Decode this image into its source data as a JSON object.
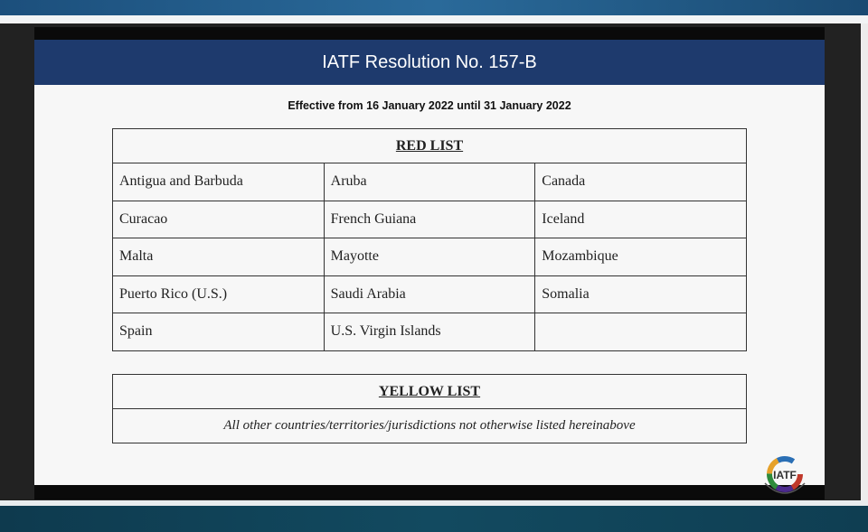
{
  "slide": {
    "title": "IATF Resolution No. 157-B",
    "effective": "Effective from 16 January 2022 until 31 January 2022",
    "red_list": {
      "heading": "RED LIST",
      "rows": [
        [
          "Antigua and Barbuda",
          "Aruba",
          "Canada"
        ],
        [
          "Curacao",
          "French Guiana",
          "Iceland"
        ],
        [
          "Malta",
          "Mayotte",
          "Mozambique"
        ],
        [
          "Puerto Rico (U.S.)",
          "Saudi Arabia",
          "Somalia"
        ],
        [
          "Spain",
          "U.S. Virgin Islands",
          ""
        ]
      ]
    },
    "yellow_list": {
      "heading": "YELLOW LIST",
      "text": "All other countries/territories/jurisdictions not otherwise listed hereinabove"
    },
    "logo": "IATF"
  },
  "colors": {
    "header": "#1e3a6d",
    "top_band": "#1c4f7c",
    "bottom_band": "#0e3a4e"
  }
}
